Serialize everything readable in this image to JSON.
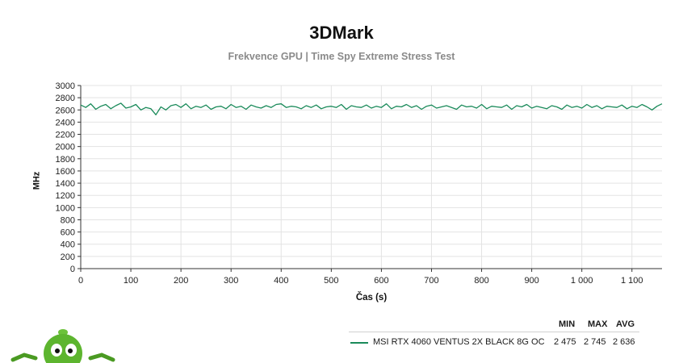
{
  "title": "3DMark",
  "subtitle": "Frekvence GPU | Time Spy Extreme Stress Test",
  "legend": {
    "headers": [
      "MIN",
      "MAX",
      "AVG"
    ],
    "rows": [
      {
        "name": "MSI RTX 4060 VENTUS 2X BLACK 8G OC",
        "min": "2 475",
        "max": "2 745",
        "avg": "2 636"
      }
    ]
  },
  "chart_data": {
    "type": "line",
    "title": "3DMark",
    "subtitle": "Frekvence GPU | Time Spy Extreme Stress Test",
    "xlabel": "Čas (s)",
    "ylabel": "MHz",
    "xlim": [
      0,
      1160
    ],
    "ylim": [
      0,
      3000
    ],
    "x_ticks": [
      0,
      100,
      200,
      300,
      400,
      500,
      600,
      700,
      800,
      900,
      1000,
      1100
    ],
    "x_tick_labels": [
      "0",
      "100",
      "200",
      "300",
      "400",
      "500",
      "600",
      "700",
      "800",
      "900",
      "1 000",
      "1 100"
    ],
    "y_ticks": [
      0,
      200,
      400,
      600,
      800,
      1000,
      1200,
      1400,
      1600,
      1800,
      2000,
      2200,
      2400,
      2600,
      2800,
      3000
    ],
    "y_tick_labels": [
      "0",
      "200",
      "400",
      "600",
      "800",
      "1000",
      "1200",
      "1400",
      "1600",
      "1800",
      "2000",
      "2200",
      "2400",
      "2600",
      "2800",
      "3000"
    ],
    "grid": true,
    "legend_position": "bottom-right",
    "series": [
      {
        "name": "MSI RTX 4060 VENTUS 2X BLACK 8G OC",
        "color": "#1a8a5a",
        "min": 2475,
        "max": 2745,
        "avg": 2636,
        "x": [
          0,
          10,
          20,
          30,
          40,
          50,
          60,
          70,
          80,
          90,
          100,
          110,
          120,
          130,
          140,
          150,
          160,
          170,
          180,
          190,
          200,
          210,
          220,
          230,
          240,
          250,
          260,
          270,
          280,
          290,
          300,
          310,
          320,
          330,
          340,
          350,
          360,
          370,
          380,
          390,
          400,
          410,
          420,
          430,
          440,
          450,
          460,
          470,
          480,
          490,
          500,
          510,
          520,
          530,
          540,
          550,
          560,
          570,
          580,
          590,
          600,
          610,
          620,
          630,
          640,
          650,
          660,
          670,
          680,
          690,
          700,
          710,
          720,
          730,
          740,
          750,
          760,
          770,
          780,
          790,
          800,
          810,
          820,
          830,
          840,
          850,
          860,
          870,
          880,
          890,
          900,
          910,
          920,
          930,
          940,
          950,
          960,
          970,
          980,
          990,
          1000,
          1010,
          1020,
          1030,
          1040,
          1050,
          1060,
          1070,
          1080,
          1090,
          1100,
          1110,
          1120,
          1130,
          1140,
          1150,
          1160
        ],
        "y": [
          2680,
          2640,
          2700,
          2610,
          2660,
          2690,
          2620,
          2670,
          2710,
          2630,
          2650,
          2690,
          2600,
          2640,
          2620,
          2520,
          2650,
          2600,
          2670,
          2690,
          2640,
          2700,
          2620,
          2660,
          2640,
          2680,
          2610,
          2650,
          2660,
          2620,
          2690,
          2640,
          2660,
          2610,
          2680,
          2650,
          2630,
          2670,
          2640,
          2690,
          2700,
          2640,
          2660,
          2650,
          2620,
          2670,
          2640,
          2680,
          2620,
          2650,
          2660,
          2640,
          2690,
          2610,
          2670,
          2650,
          2640,
          2680,
          2630,
          2660,
          2640,
          2700,
          2620,
          2660,
          2650,
          2690,
          2640,
          2670,
          2610,
          2660,
          2680,
          2630,
          2650,
          2670,
          2640,
          2610,
          2680,
          2650,
          2660,
          2630,
          2690,
          2620,
          2660,
          2650,
          2640,
          2680,
          2610,
          2670,
          2650,
          2690,
          2630,
          2660,
          2640,
          2620,
          2670,
          2650,
          2610,
          2680,
          2640,
          2660,
          2630,
          2690,
          2640,
          2670,
          2620,
          2660,
          2650,
          2640,
          2680,
          2620,
          2660,
          2640,
          2690,
          2650,
          2600,
          2660,
          2700
        ]
      }
    ]
  }
}
